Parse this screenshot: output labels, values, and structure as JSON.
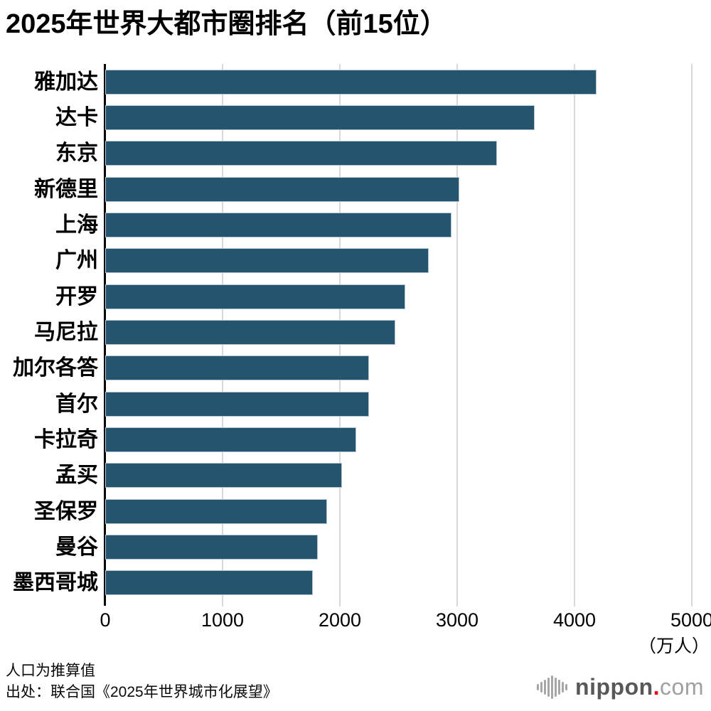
{
  "title": "2025年世界大都市圈排名（前15位）",
  "chart_data": {
    "type": "bar",
    "orientation": "horizontal",
    "title": "2025年世界大都市圈排名（前15位）",
    "categories": [
      "雅加达",
      "达卡",
      "东京",
      "新德里",
      "上海",
      "广州",
      "开罗",
      "马尼拉",
      "加尔各答",
      "首尔",
      "卡拉奇",
      "孟买",
      "圣保罗",
      "曼谷",
      "墨西哥城"
    ],
    "values": [
      4190,
      3660,
      3340,
      3020,
      2950,
      2760,
      2560,
      2470,
      2250,
      2250,
      2140,
      2020,
      1890,
      1810,
      1770
    ],
    "x_ticks": [
      0,
      1000,
      2000,
      3000,
      4000,
      5000
    ],
    "xlim": [
      0,
      5000
    ],
    "xlabel_unit": "（万人）",
    "grid": true,
    "legend": "none",
    "bar_color": "#25546e",
    "bar_border_color": "#b2c5d1",
    "grid_color": "#d9d9d9",
    "axis_color": "#000000"
  },
  "footer": {
    "note1": "人口为推算值",
    "note2": "出处：联合国《2025年世界城市化展望》"
  },
  "logo": {
    "text_main": "nippon",
    "dot": ".",
    "text_suffix": "com",
    "main_color": "#595757",
    "dot_color": "#e60012",
    "suffix_color": "#9fa0a0",
    "icon_bar_color": "#a6a6a6"
  }
}
